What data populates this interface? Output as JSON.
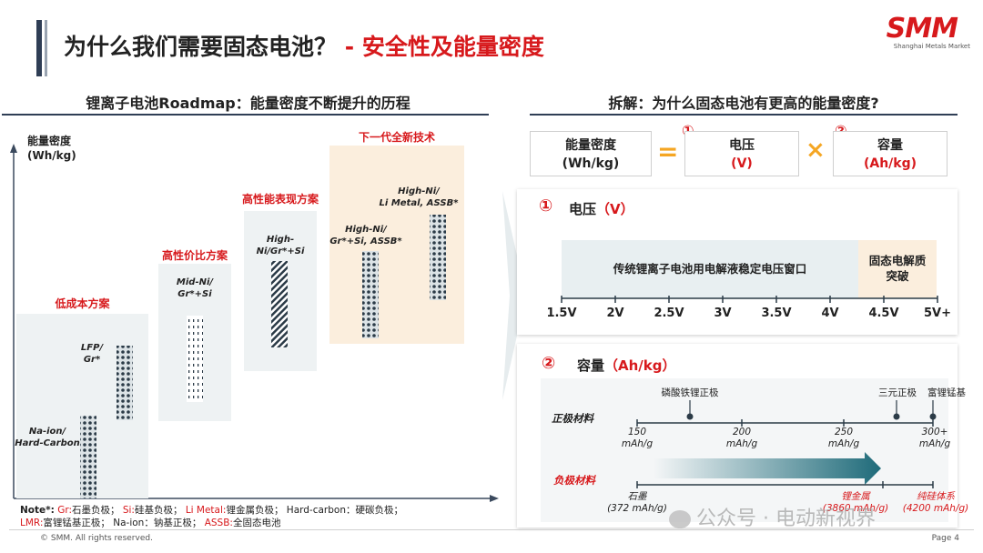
{
  "header": {
    "title_main": "为什么我们需要固态电池？",
    "title_dash": "-",
    "title_accent": "安全性及能量密度",
    "logo_text": "SMM",
    "logo_sub": "Shanghai Metals Market"
  },
  "left": {
    "section_title": "锂离子电池Roadmap：能量密度不断提升的历程",
    "y_axis_label_1": "能量密度",
    "y_axis_label_2": "(Wh/kg)",
    "stages": [
      {
        "title": "低成本方案",
        "label_a1": "LFP/",
        "label_a2": "Gr*",
        "label_b1": "Na-ion/",
        "label_b2": "Hard-Carbon"
      },
      {
        "title": "高性价比方案",
        "label_a1": "Mid-Ni/",
        "label_a2": "Gr*+Si"
      },
      {
        "title": "高性能表现方案",
        "label_a1": "High-",
        "label_a2": "Ni/Gr*+Si"
      },
      {
        "title": "下一代全新技术",
        "label_a1": "High-Ni/",
        "label_a2": "Li Metal, ASSB*",
        "label_b1": "High-Ni/",
        "label_b2": "Gr*+Si, ASSB*"
      }
    ],
    "note": {
      "prefix": "Note*:",
      "items": [
        {
          "key": "Gr:",
          "val": "石墨负极；"
        },
        {
          "key": "Si:",
          "val": "硅基负极；"
        },
        {
          "key": "Li Metal:",
          "val": "锂金属负极；"
        },
        {
          "key": "Hard-carbon：",
          "val": "硬碳负极；",
          "plain": true
        }
      ],
      "items2": [
        {
          "key": "LMR:",
          "val": "富锂锰基正极；"
        },
        {
          "key": "Na-ion：",
          "val": "钠基正极；",
          "plain": true
        },
        {
          "key": "ASSB:",
          "val": "全固态电池"
        }
      ]
    }
  },
  "right": {
    "section_title": "拆解：为什么固态电池有更高的能量密度?",
    "formula": {
      "lhs_1": "能量密度",
      "lhs_2": "(Wh/kg)",
      "eq": "=",
      "n1": "①",
      "v_1": "电压",
      "v_2": "(V)",
      "times": "×",
      "n2": "②",
      "c_1": "容量",
      "c_2": "(Ah/kg)"
    },
    "voltage": {
      "num": "①",
      "title": "电压",
      "unit": "（V）",
      "bar_main": "传统锂离子电池用电解液稳定电压窗口",
      "bar_side_1": "固态电解质",
      "bar_side_2": "突破",
      "ticks": [
        "1.5V",
        "2V",
        "2.5V",
        "3V",
        "3.5V",
        "4V",
        "4.5V",
        "5V+"
      ]
    },
    "capacity": {
      "num": "②",
      "title": "容量",
      "unit": "（Ah/kg）",
      "cathode_label": "正极材料",
      "anode_label": "负极材料",
      "cathode_points": [
        "磷酸铁锂正极",
        "三元正极",
        "富锂锰基"
      ],
      "scale": [
        {
          "v": "150",
          "u": "mAh/g"
        },
        {
          "v": "200",
          "u": "mAh/g"
        },
        {
          "v": "250",
          "u": "mAh/g"
        },
        {
          "v": "300+",
          "u": "mAh/g"
        }
      ],
      "anode_points": [
        {
          "name": "石墨",
          "val": "(372 mAh/g)"
        },
        {
          "name": "锂金属",
          "val": "(3860 mAh/g)"
        },
        {
          "name": "纯硅体系",
          "val": "(4200 mAh/g)"
        }
      ]
    }
  },
  "footer": {
    "copyright": "© SMM. All rights reserved.",
    "watermark": "公众号 · 电动新视界",
    "page": "Page 4"
  },
  "colors": {
    "red": "#d7191c",
    "navy": "#2f3e55",
    "teal": "#1f6b7a",
    "amber": "#f5a623"
  }
}
